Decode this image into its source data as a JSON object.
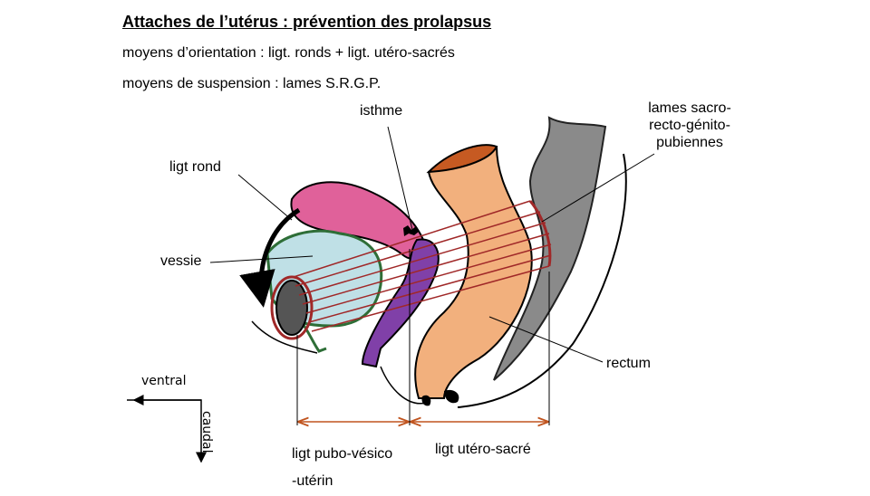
{
  "title": "Attaches de l’utérus : prévention des prolapsus",
  "subtitles": [
    "moyens d’orientation : ligt. ronds + ligt. utéro-sacrés",
    "moyens de suspension : lames S.R.G.P."
  ],
  "labels": {
    "isthme": "isthme",
    "lames": [
      "lames sacro-",
      "recto-génito-",
      "pubiennes"
    ],
    "ligt_rond": "ligt rond",
    "vessie": "vessie",
    "rectum": "rectum",
    "ventral": "ventral",
    "caudal": "caudal",
    "ligt_pubo": [
      "ligt pubo-vésico",
      "-utérin"
    ],
    "ligt_utero": "ligt utéro-sacré"
  },
  "colors": {
    "uterus": "#e0619a",
    "vessie": "#bfe0e6",
    "vessie_outline": "#2e6e37",
    "vagin": "#8040a8",
    "rectum": "#f2b07d",
    "rectum_top": "#c65a22",
    "sacrum": "#8a8a8a",
    "ligaments": "#a02828",
    "dimension": "#c0541e"
  }
}
